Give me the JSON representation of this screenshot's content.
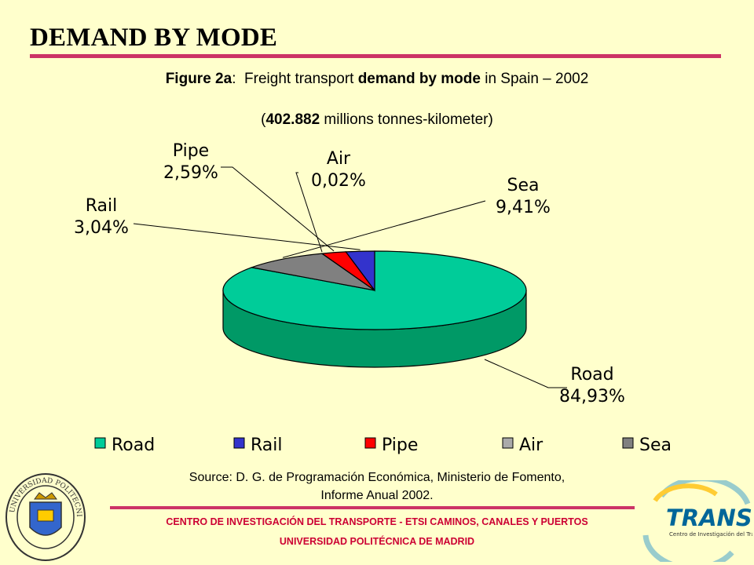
{
  "slide": {
    "heading": "DEMAND BY MODE",
    "figure_label": "Figure 2a",
    "figure_colon": ":",
    "figure_pre": "Freight transport ",
    "figure_bold": "demand by mode",
    "figure_post": " in Spain – 2002",
    "total_open": "(",
    "total_value": "402.882",
    "total_rest": " millions tonnes-kilometer)",
    "source_line1": "Source: D. G. de Programación Económica, Ministerio de Fomento,",
    "source_line2": "Informe Anual 2002.",
    "footer_line1": "CENTRO DE INVESTIGACIÓN DEL TRANSPORTE - ETSI CAMINOS, CANALES Y PUERTOS",
    "footer_line2": "UNIVERSIDAD POLITÉCNICA DE MADRID",
    "logo_left_text": "UNIVERSIDAD POLITECNICA · MADRID",
    "logo_right_text": "TRANSYT",
    "logo_right_subtext": "Centro de Investigación del Transporte"
  },
  "colors": {
    "background": "#FFFFCC",
    "rule": "#CC3366",
    "footer_text": "#CC0033"
  },
  "chart_data": {
    "type": "pie",
    "style": "3d",
    "categories": [
      "Road",
      "Rail",
      "Pipe",
      "Air",
      "Sea"
    ],
    "values": [
      84.93,
      3.04,
      2.59,
      0.02,
      9.41
    ],
    "labels": [
      "84,93%",
      "3,04%",
      "2,59%",
      "0,02%",
      "9,41%"
    ],
    "colors": [
      "#00CC99",
      "#3333CC",
      "#FF0000",
      "#AAAAAA",
      "#808080"
    ],
    "side_colors": [
      "#009966",
      "#222288",
      "#AA0000",
      "#777777",
      "#555555"
    ],
    "legend": [
      "Road",
      "Rail",
      "Pipe",
      "Air",
      "Sea"
    ],
    "legend_position": "bottom"
  }
}
